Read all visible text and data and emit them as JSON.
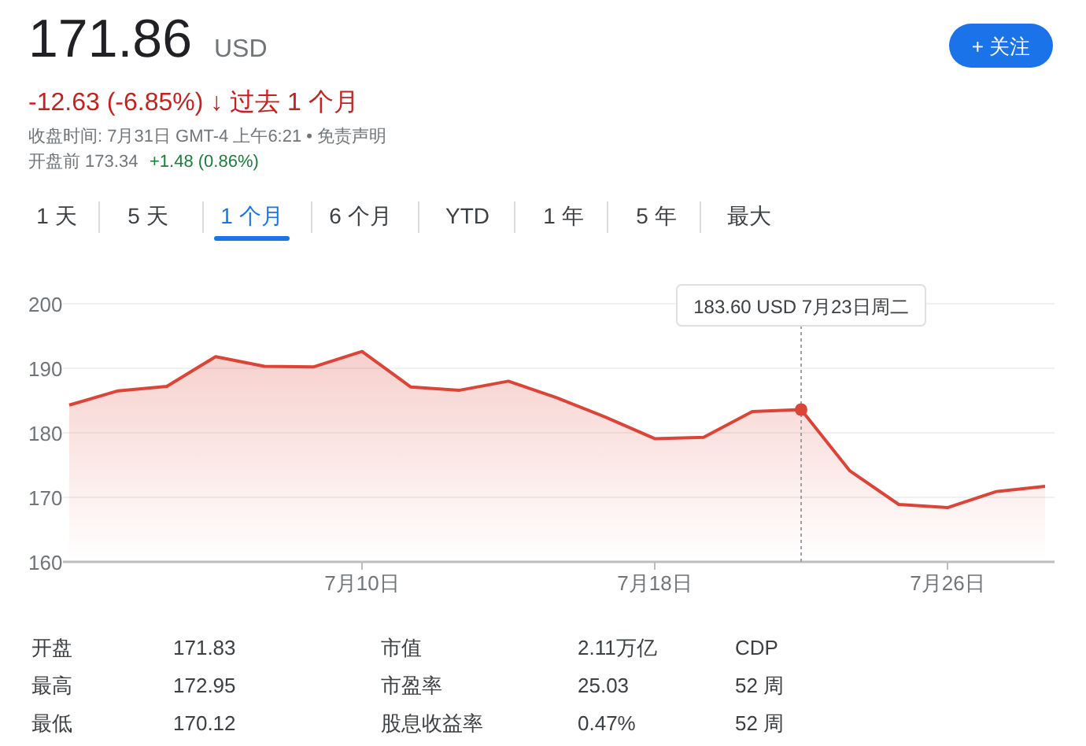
{
  "chart_data": {
    "type": "area",
    "categories": [
      null,
      null,
      null,
      null,
      null,
      null,
      "7月10日",
      null,
      null,
      null,
      null,
      null,
      "7月18日",
      null,
      null,
      null,
      null,
      null,
      "7月26日",
      null,
      null
    ],
    "series": [
      {
        "color": "#db4437",
        "values": [
          184.3,
          186.5,
          187.2,
          191.8,
          190.3,
          190.2,
          192.6,
          187.1,
          186.6,
          188.0,
          185.4,
          182.4,
          179.1,
          179.3,
          183.3,
          183.6,
          174.1,
          168.9,
          168.4,
          170.9,
          171.7
        ]
      }
    ],
    "ylim": [
      160,
      200
    ],
    "yticks": [
      160,
      170,
      180,
      190,
      200
    ],
    "grid": "y",
    "annotations": [
      "171.86",
      "USD",
      "-12.63 (-6.85%) ↓ 过去 1 个月",
      "收盘时间: 7月31日 GMT-4 上午6:21 • 免责声明",
      "开盘前 173.34",
      "+1.48 (0.86%)",
      "+ 关注",
      "1 天",
      "5 天",
      "1 个月",
      "6 个月",
      "YTD",
      "1 年",
      "5 年",
      "最大",
      "开盘",
      "171.83",
      "市值",
      "2.11万亿",
      "CDP",
      "最高",
      "172.95",
      "市盈率",
      "25.03",
      "52 周",
      "最低",
      "170.12",
      "股息收益率",
      "0.47%",
      "52 周",
      "183.60 USD  7月23日周二"
    ]
  }
}
